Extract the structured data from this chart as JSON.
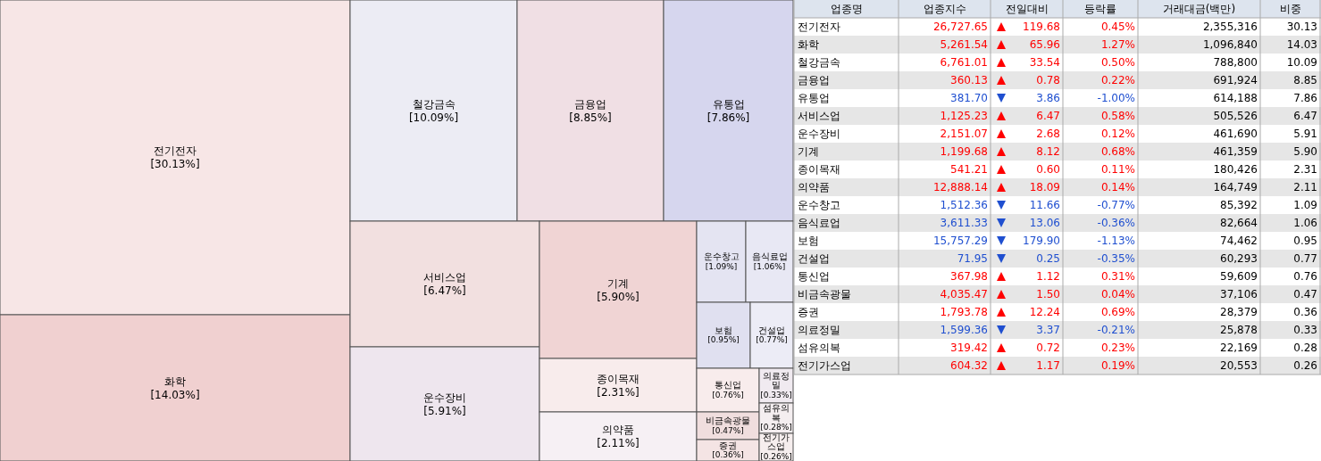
{
  "chart_data": [
    {
      "type": "other",
      "categories": [
        "전기전자",
        "화학",
        "철강금속",
        "금융업",
        "유통업",
        "서비스업",
        "운수장비",
        "기계",
        "종이목재",
        "의약품",
        "운수창고",
        "음식료업",
        "보험",
        "건설업",
        "통신업",
        "비금속광물",
        "증권",
        "의료정밀",
        "섬유의복",
        "전기가스업"
      ],
      "values": [
        30.13,
        14.03,
        10.09,
        8.85,
        7.86,
        6.47,
        5.91,
        5.9,
        2.31,
        2.11,
        1.09,
        1.06,
        0.95,
        0.77,
        0.76,
        0.47,
        0.36,
        0.33,
        0.28,
        0.26
      ],
      "value_labels": [
        "[30.13%]",
        "[14.03%]",
        "[10.09%]",
        "[8.85%]",
        "[7.86%]",
        "[6.47%]",
        "[5.91%]",
        "[5.90%]",
        "[2.31%]",
        "[2.11%]",
        "[1.09%]",
        "[1.06%]",
        "[0.95%]",
        "[0.77%]",
        "[0.76%]",
        "[0.47%]",
        "[0.36%]",
        "[0.33%]",
        "[0.28%]",
        "[0.26%]"
      ],
      "colors": [
        "#f7e6e6",
        "#f0d0d0",
        "#ececf4",
        "#f0dfe4",
        "#d6d6ee",
        "#f2e0e0",
        "#eee6ee",
        "#f0d4d4",
        "#f8ecec",
        "#f6f0f4",
        "#e4e4f2",
        "#e8e8f4",
        "#e0e0f0",
        "#ececf6",
        "#f8ecec",
        "#f0dede",
        "#f4e4e4",
        "#f0eaf0",
        "#f4eef0",
        "#f6eeee"
      ]
    },
    {
      "type": "other",
      "ylabel": "업종명",
      "categories": [
        "전기전자",
        "화학",
        "철강금속",
        "금융업",
        "유통업",
        "서비스업",
        "운수장비",
        "기계",
        "종이목재",
        "의약품",
        "운수창고",
        "음식료업",
        "보험",
        "건설업",
        "통신업",
        "비금속광물",
        "증권",
        "의료정밀",
        "섬유의복",
        "전기가스업"
      ],
      "colors": [
        "#ff0000",
        "#ff0000",
        "#ff0000",
        "#ff0000",
        "#1f4fd0",
        "#ff0000",
        "#ff0000",
        "#ff0000",
        "#ff0000",
        "#ff0000",
        "#1f4fd0",
        "#1f4fd0",
        "#1f4fd0",
        "#1f4fd0",
        "#ff0000",
        "#ff0000",
        "#ff0000",
        "#1f4fd0",
        "#ff0000",
        "#ff0000"
      ],
      "series": [
        {
          "name": "업종지수",
          "values": [
            26727.65,
            5261.54,
            6761.01,
            360.13,
            381.7,
            1125.23,
            2151.07,
            1199.68,
            541.21,
            12888.14,
            1512.36,
            3611.33,
            15757.29,
            71.95,
            367.98,
            4035.47,
            1793.78,
            1599.36,
            319.42,
            604.32
          ],
          "value_labels": [
            "26,727.65",
            "5,261.54",
            "6,761.01",
            "360.13",
            "381.70",
            "1,125.23",
            "2,151.07",
            "1,199.68",
            "541.21",
            "12,888.14",
            "1,512.36",
            "3,611.33",
            "15,757.29",
            "71.95",
            "367.98",
            "4,035.47",
            "1,793.78",
            "1,599.36",
            "319.42",
            "604.32"
          ]
        },
        {
          "name": "전일대비",
          "values": [
            119.68,
            65.96,
            33.54,
            0.78,
            3.86,
            6.47,
            2.68,
            8.12,
            0.6,
            18.09,
            11.66,
            13.06,
            179.9,
            0.25,
            1.12,
            1.5,
            12.24,
            3.37,
            0.72,
            1.17
          ],
          "value_labels": [
            "119.68",
            "65.96",
            "33.54",
            "0.78",
            "3.86",
            "6.47",
            "2.68",
            "8.12",
            "0.60",
            "18.09",
            "11.66",
            "13.06",
            "179.90",
            "0.25",
            "1.12",
            "1.50",
            "12.24",
            "3.37",
            "0.72",
            "1.17"
          ]
        },
        {
          "name": "등락률",
          "values": [
            0.45,
            1.27,
            0.5,
            0.22,
            -1.0,
            0.58,
            0.12,
            0.68,
            0.11,
            0.14,
            -0.77,
            -0.36,
            -1.13,
            -0.35,
            0.31,
            0.04,
            0.69,
            -0.21,
            0.23,
            0.19
          ],
          "value_labels": [
            "0.45%",
            "1.27%",
            "0.50%",
            "0.22%",
            "-1.00%",
            "0.58%",
            "0.12%",
            "0.68%",
            "0.11%",
            "0.14%",
            "-0.77%",
            "-0.36%",
            "-1.13%",
            "-0.35%",
            "0.31%",
            "0.04%",
            "0.69%",
            "-0.21%",
            "0.23%",
            "0.19%"
          ]
        },
        {
          "name": "거래대금(백만)",
          "values": [
            2355316,
            1096840,
            788800,
            691924,
            614188,
            505526,
            461690,
            461359,
            180426,
            164749,
            85392,
            82664,
            74462,
            60293,
            59609,
            37106,
            28379,
            25878,
            22169,
            20553
          ],
          "value_labels": [
            "2,355,316",
            "1,096,840",
            "788,800",
            "691,924",
            "614,188",
            "505,526",
            "461,690",
            "461,359",
            "180,426",
            "164,749",
            "85,392",
            "82,664",
            "74,462",
            "60,293",
            "59,609",
            "37,106",
            "28,379",
            "25,878",
            "22,169",
            "20,553"
          ]
        },
        {
          "name": "비중",
          "values": [
            30.13,
            14.03,
            10.09,
            8.85,
            7.86,
            6.47,
            5.91,
            5.9,
            2.31,
            2.11,
            1.09,
            1.06,
            0.95,
            0.77,
            0.76,
            0.47,
            0.36,
            0.33,
            0.28,
            0.26
          ],
          "value_labels": [
            "30.13",
            "14.03",
            "10.09",
            "8.85",
            "7.86",
            "6.47",
            "5.91",
            "5.90",
            "2.31",
            "2.11",
            "1.09",
            "1.06",
            "0.95",
            "0.77",
            "0.76",
            "0.47",
            "0.36",
            "0.33",
            "0.28",
            "0.26"
          ]
        }
      ]
    }
  ]
}
